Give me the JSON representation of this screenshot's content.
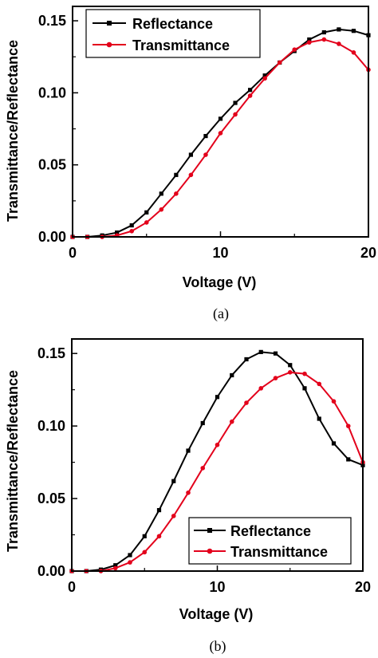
{
  "colors": {
    "reflectance": "#000000",
    "transmittance": "#e3001b",
    "axis": "#000000"
  },
  "chart_data": [
    {
      "type": "line",
      "caption": "(a)",
      "xlabel": "Voltage (V)",
      "ylabel": "Transmittance/Reflectance",
      "xlim": [
        0,
        20
      ],
      "ylim": [
        0,
        0.16
      ],
      "xticks": [
        0,
        10,
        20
      ],
      "xtick_labels": [
        "0",
        "10",
        "20"
      ],
      "yticks": [
        0,
        0.05,
        0.1,
        0.15
      ],
      "ytick_labels": [
        "0.00",
        "0.05",
        "0.10",
        "0.15"
      ],
      "grid": false,
      "legend_position": "top-left",
      "x": [
        0,
        1,
        2,
        3,
        4,
        5,
        6,
        7,
        8,
        9,
        10,
        11,
        12,
        13,
        14,
        15,
        16,
        17,
        18,
        19,
        20
      ],
      "series": [
        {
          "name": "Reflectance",
          "color": "#000000",
          "marker": "square",
          "values": [
            0.0,
            0.0,
            0.001,
            0.003,
            0.008,
            0.017,
            0.03,
            0.043,
            0.057,
            0.07,
            0.082,
            0.093,
            0.102,
            0.112,
            0.121,
            0.129,
            0.137,
            0.142,
            0.144,
            0.143,
            0.14
          ]
        },
        {
          "name": "Transmittance",
          "color": "#e3001b",
          "marker": "circle",
          "values": [
            0.0,
            0.0,
            0.0,
            0.001,
            0.004,
            0.01,
            0.019,
            0.03,
            0.043,
            0.057,
            0.072,
            0.085,
            0.098,
            0.11,
            0.121,
            0.13,
            0.135,
            0.137,
            0.134,
            0.128,
            0.116
          ]
        }
      ]
    },
    {
      "type": "line",
      "caption": "(b)",
      "xlabel": "Voltage (V)",
      "ylabel": "Transmittance/Reflectance",
      "xlim": [
        0,
        20
      ],
      "ylim": [
        0,
        0.16
      ],
      "xticks": [
        0,
        10,
        20
      ],
      "xtick_labels": [
        "0",
        "10",
        "20"
      ],
      "yticks": [
        0,
        0.05,
        0.1,
        0.15
      ],
      "ytick_labels": [
        "0.00",
        "0.05",
        "0.10",
        "0.15"
      ],
      "grid": false,
      "legend_position": "bottom-right",
      "x": [
        0,
        1,
        2,
        3,
        4,
        5,
        6,
        7,
        8,
        9,
        10,
        11,
        12,
        13,
        14,
        15,
        16,
        17,
        18,
        19,
        20
      ],
      "series": [
        {
          "name": "Reflectance",
          "color": "#000000",
          "marker": "square",
          "values": [
            0.0,
            0.0,
            0.001,
            0.004,
            0.011,
            0.024,
            0.042,
            0.062,
            0.083,
            0.102,
            0.12,
            0.135,
            0.146,
            0.151,
            0.15,
            0.142,
            0.126,
            0.105,
            0.088,
            0.077,
            0.073
          ]
        },
        {
          "name": "Transmittance",
          "color": "#e3001b",
          "marker": "circle",
          "values": [
            0.0,
            0.0,
            0.0,
            0.002,
            0.006,
            0.013,
            0.024,
            0.038,
            0.054,
            0.071,
            0.087,
            0.103,
            0.116,
            0.126,
            0.133,
            0.137,
            0.136,
            0.129,
            0.117,
            0.1,
            0.075
          ]
        }
      ]
    }
  ]
}
